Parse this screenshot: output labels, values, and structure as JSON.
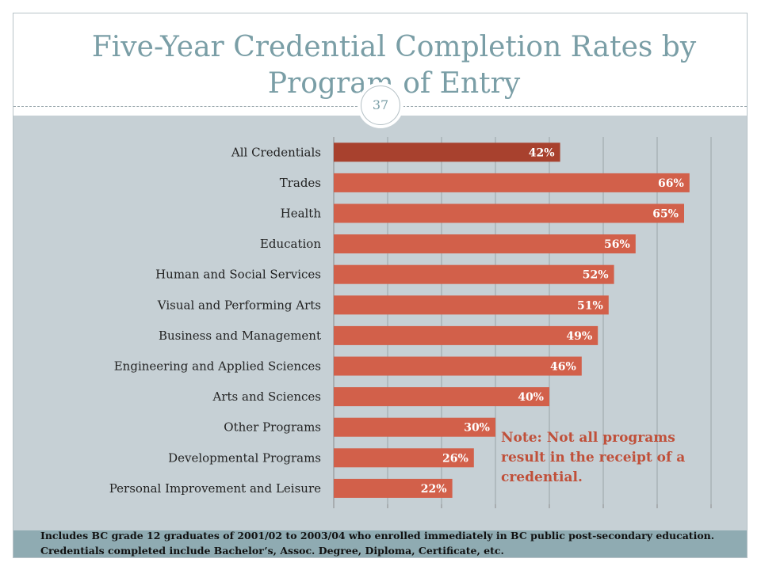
{
  "slide": {
    "title": "Five-Year Credential Completion Rates by Program of Entry",
    "page_number": "37",
    "note": "Note:  Not all programs result in the receipt of a credential.",
    "footnote": "Includes BC grade 12 graduates of 2001/02 to 2003/04 who enrolled immediately in BC public post-secondary education.  Credentials completed include Bachelor’s, Assoc. Degree, Diploma, Certificate, etc."
  },
  "colors": {
    "highlight_bar": "#a8412e",
    "bar": "#d2604a",
    "title": "#7a9ea6",
    "note": "#c0503a",
    "content_bg": "#c6d0d5",
    "footer_band": "#8fabb2"
  },
  "chart_data": {
    "type": "bar",
    "orientation": "horizontal",
    "categories": [
      "All Credentials",
      "Trades",
      "Health",
      "Education",
      "Human and Social Services",
      "Visual and Performing Arts",
      "Business and Management",
      "Engineering and Applied Sciences",
      "Arts and Sciences",
      "Other Programs",
      "Developmental Programs",
      "Personal Improvement and Leisure"
    ],
    "values": [
      42,
      66,
      65,
      56,
      52,
      51,
      49,
      46,
      40,
      30,
      26,
      22
    ],
    "data_labels": [
      "42%",
      "66%",
      "65%",
      "56%",
      "52%",
      "51%",
      "49%",
      "46%",
      "40%",
      "30%",
      "26%",
      "22%"
    ],
    "highlight_index": 0,
    "xlim": [
      0,
      70
    ],
    "x_gridline_step": 10,
    "grid": true,
    "legend": "none"
  }
}
